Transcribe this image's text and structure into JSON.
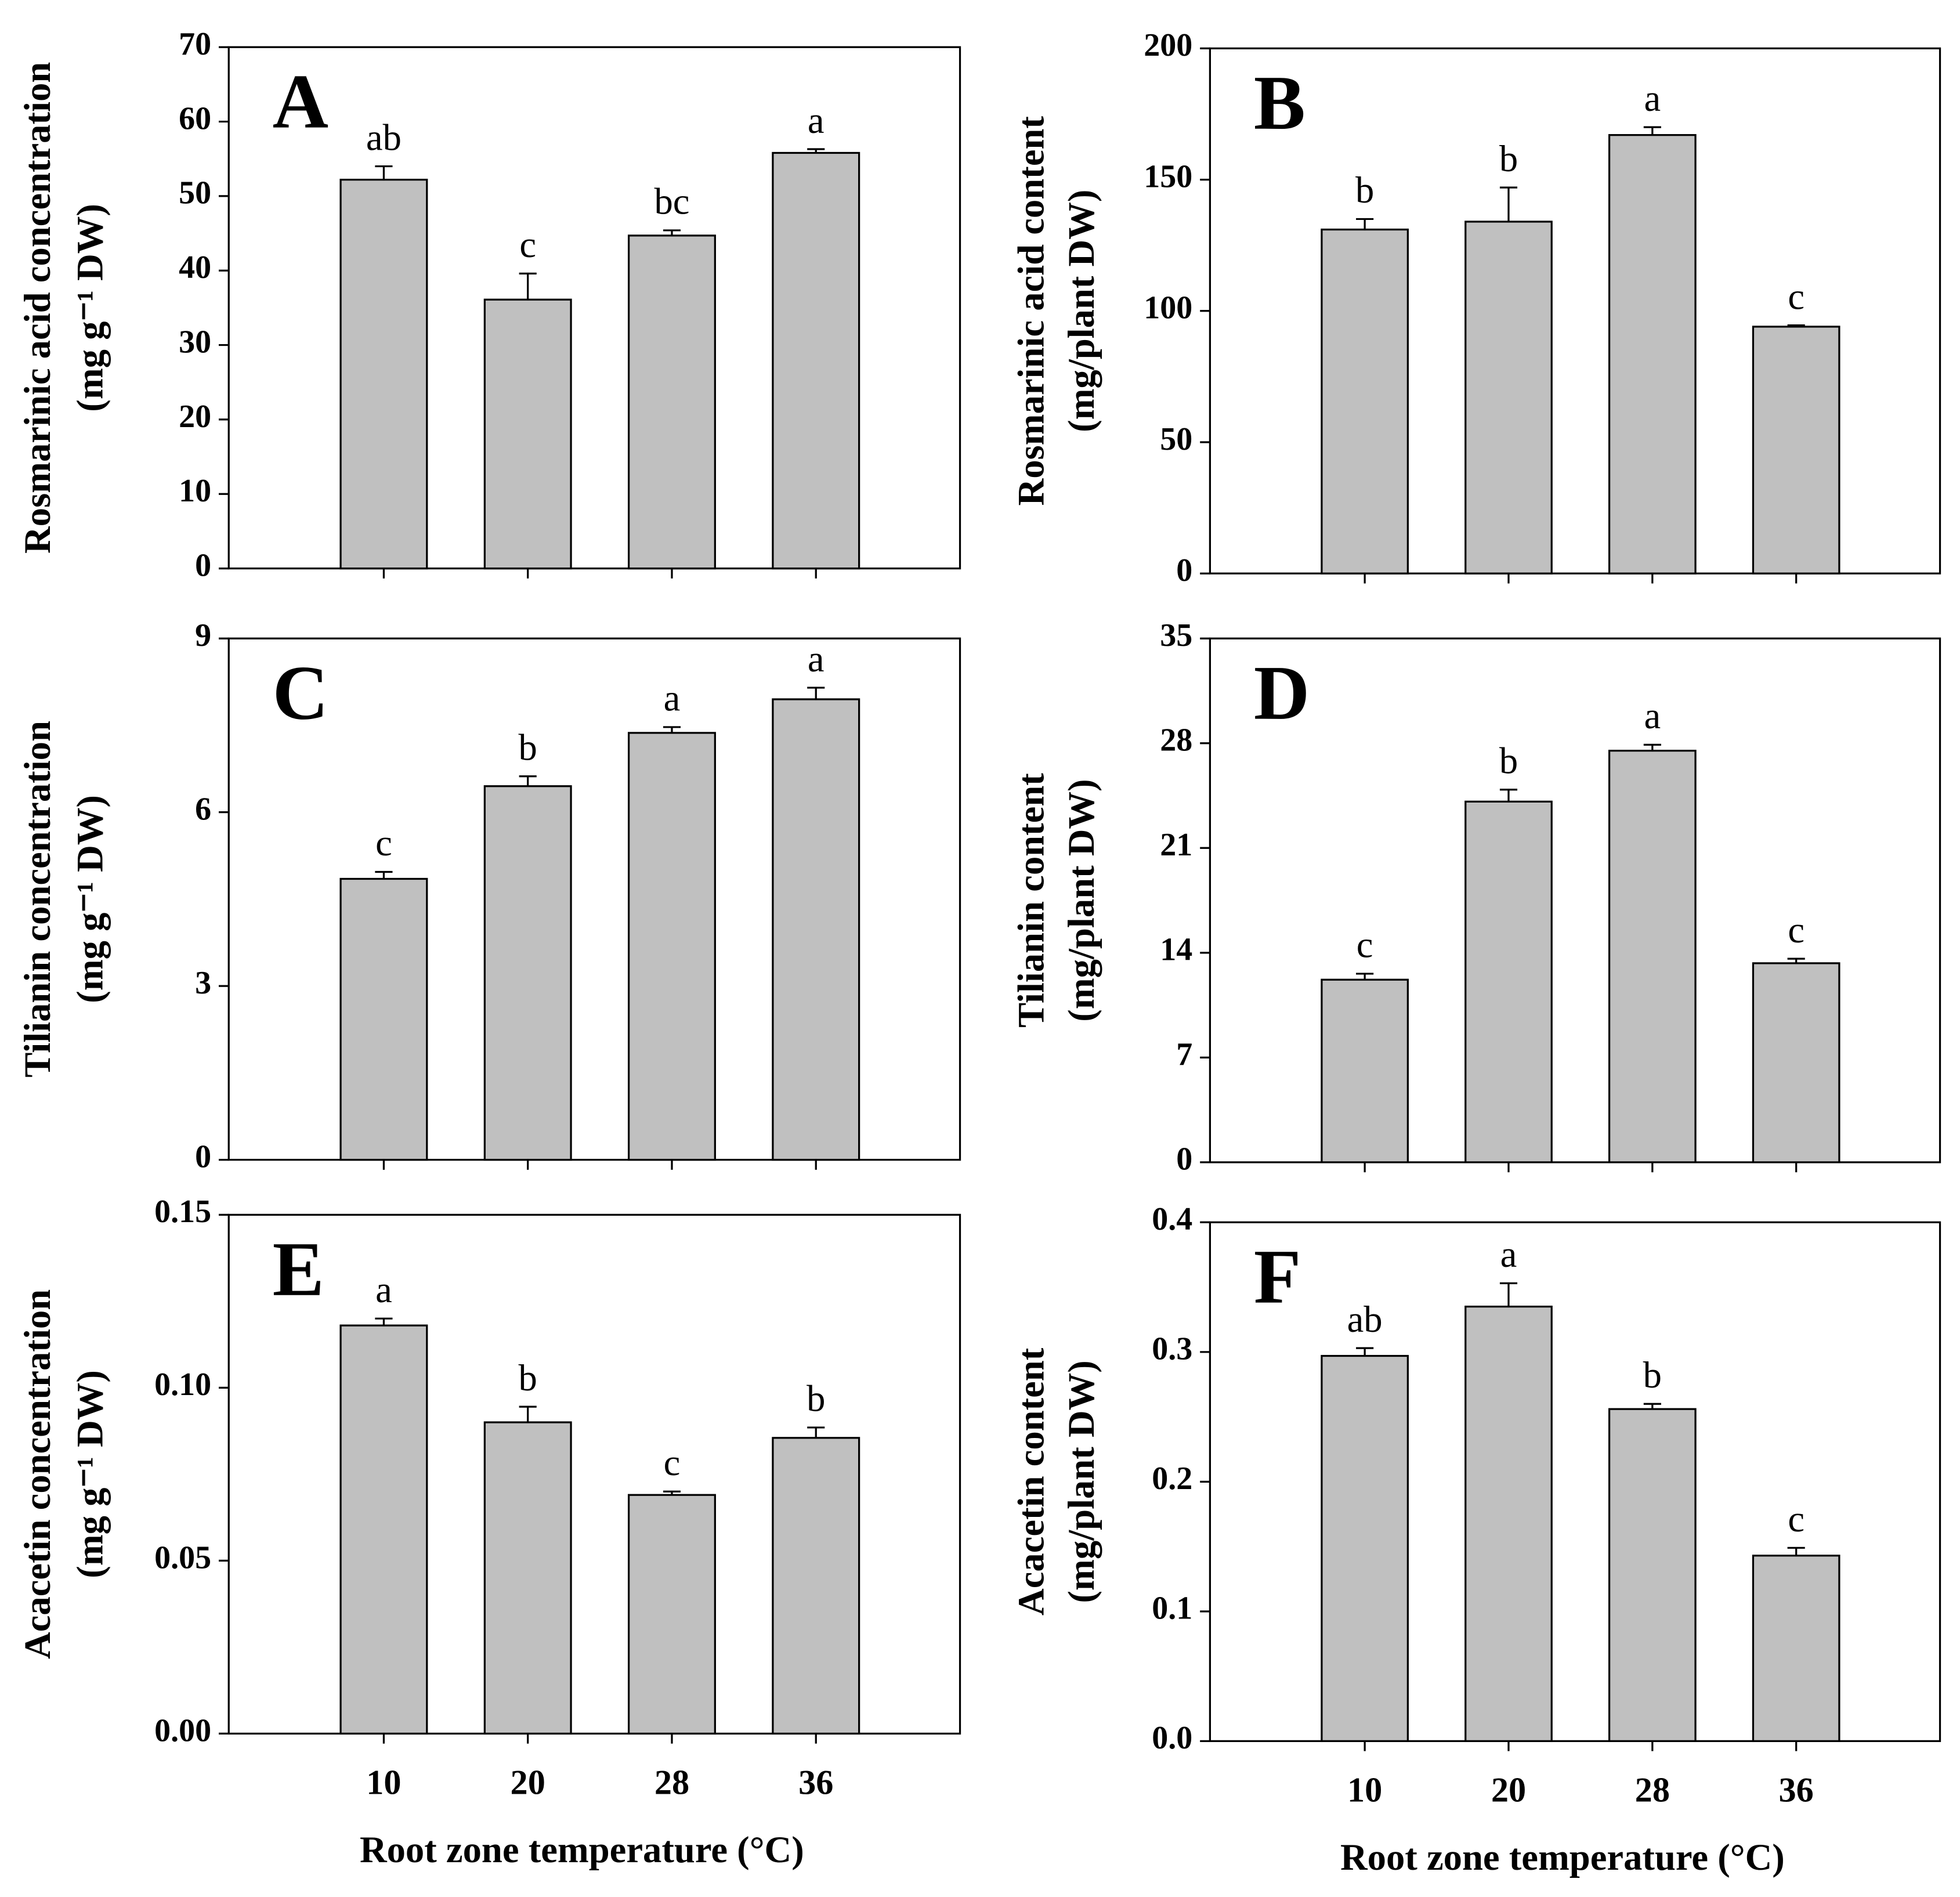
{
  "chart_data": [
    {
      "type": "bar",
      "panel": "A",
      "ylabel": [
        "Rosmarinic acid concentration",
        "(mg g⁻¹ DW)"
      ],
      "values": [
        52.2,
        36.1,
        44.7,
        55.8
      ],
      "errors": [
        1.8,
        3.5,
        0.7,
        0.5
      ],
      "letters": [
        "ab",
        "c",
        "bc",
        "a"
      ],
      "color": "#c0c0c0",
      "ylim": [
        0,
        70
      ],
      "yticks": [
        0,
        10,
        20,
        30,
        40,
        50,
        60,
        70
      ]
    },
    {
      "type": "bar",
      "panel": "B",
      "ylabel": [
        "Rosmarinic acid content",
        "(mg/plant DW)"
      ],
      "values": [
        131,
        134,
        167,
        94
      ],
      "errors": [
        4,
        13,
        3,
        0.5
      ],
      "letters": [
        "b",
        "b",
        "a",
        "c"
      ],
      "color": "#c0c0c0",
      "ylim": [
        0,
        200
      ],
      "yticks": [
        0,
        50,
        100,
        150,
        200
      ]
    },
    {
      "type": "bar",
      "panel": "C",
      "ylabel": [
        "Tilianin concentration",
        "(mg g⁻¹ DW)"
      ],
      "values": [
        4.85,
        6.45,
        7.37,
        7.95
      ],
      "errors": [
        0.12,
        0.17,
        0.1,
        0.2
      ],
      "letters": [
        "c",
        "b",
        "a",
        "a"
      ],
      "color": "#c0c0c0",
      "ylim": [
        0,
        9
      ],
      "yticks": [
        0,
        3,
        6,
        9
      ]
    },
    {
      "type": "bar",
      "panel": "D",
      "ylabel": [
        "Tilianin content",
        "(mg/plant DW)"
      ],
      "values": [
        12.2,
        24.1,
        27.5,
        13.3
      ],
      "errors": [
        0.4,
        0.8,
        0.4,
        0.3
      ],
      "letters": [
        "c",
        "b",
        "a",
        "c"
      ],
      "color": "#c0c0c0",
      "ylim": [
        0,
        35
      ],
      "yticks": [
        0,
        7,
        14,
        21,
        28,
        35
      ]
    },
    {
      "type": "bar",
      "panel": "E",
      "ylabel": [
        "Acacetin concentration",
        "(mg g⁻¹ DW)"
      ],
      "xlabel": "Root zone temperature (°C)",
      "categories": [
        "10",
        "20",
        "28",
        "36"
      ],
      "values": [
        0.118,
        0.09,
        0.069,
        0.0855
      ],
      "errors": [
        0.002,
        0.0045,
        0.001,
        0.003
      ],
      "letters": [
        "a",
        "b",
        "c",
        "b"
      ],
      "color": "#c0c0c0",
      "ylim": [
        0,
        0.15
      ],
      "yticks": [
        {
          "value": 0,
          "label": "0.00"
        },
        0.05,
        {
          "value": 0.1,
          "label": "0.10"
        },
        0.15
      ]
    },
    {
      "type": "bar",
      "panel": "F",
      "ylabel": [
        "Acacetin content",
        "(mg/plant DW)"
      ],
      "xlabel": "Root zone temperature (°C)",
      "categories": [
        "10",
        "20",
        "28",
        "36"
      ],
      "values": [
        0.297,
        0.335,
        0.256,
        0.143
      ],
      "errors": [
        0.006,
        0.018,
        0.004,
        0.006
      ],
      "letters": [
        "ab",
        "a",
        "b",
        "c"
      ],
      "color": "#c0c0c0",
      "ylim": [
        0,
        0.4
      ],
      "yticks": [
        {
          "value": 0,
          "label": "0.0"
        },
        0.1,
        0.2,
        0.3,
        0.4
      ]
    }
  ]
}
